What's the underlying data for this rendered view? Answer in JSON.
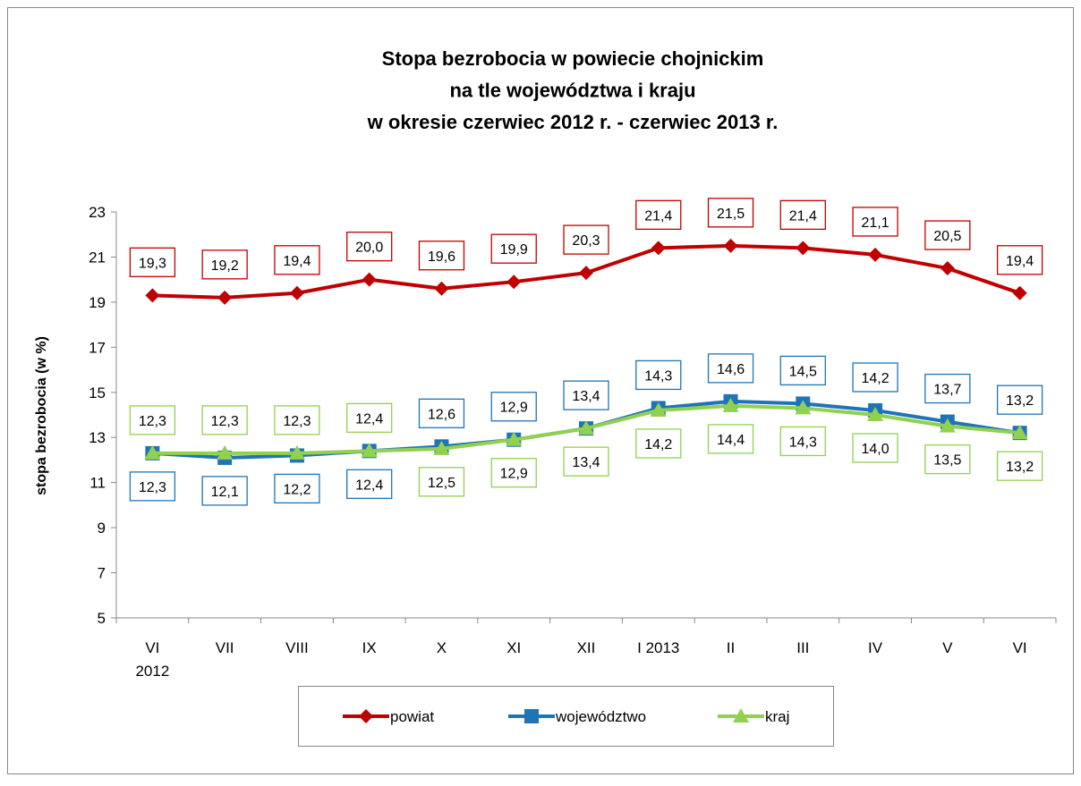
{
  "chart_data": {
    "type": "line",
    "title": [
      "Stopa bezrobocia w powiecie chojnickim",
      "na tle województwa i kraju",
      "w okresie czerwiec 2012 r. - czerwiec 2013 r."
    ],
    "ylabel": "stopa bezrobocia (w %)",
    "categories": [
      "VI\n2012",
      "VII",
      "VIII",
      "IX",
      "X",
      "XI",
      "XII",
      "I 2013",
      "II",
      "III",
      "IV",
      "V",
      "VI"
    ],
    "ylim": [
      5,
      23
    ],
    "yticks": [
      5,
      7,
      9,
      11,
      13,
      15,
      17,
      19,
      21,
      23
    ],
    "legend": "bottom",
    "series": [
      {
        "name": "powiat",
        "color": "#c00000",
        "marker": "diamond",
        "values": [
          19.3,
          19.2,
          19.4,
          20.0,
          19.6,
          19.9,
          20.3,
          21.4,
          21.5,
          21.4,
          21.1,
          20.5,
          19.4
        ],
        "value_labels": [
          "19,3",
          "19,2",
          "19,4",
          "20,0",
          "19,6",
          "19,9",
          "20,3",
          "21,4",
          "21,5",
          "21,4",
          "21,1",
          "20,5",
          "19,4"
        ]
      },
      {
        "name": "województwo",
        "color": "#1f74b8",
        "marker": "square",
        "values": [
          12.3,
          12.1,
          12.2,
          12.4,
          12.6,
          12.9,
          13.4,
          14.3,
          14.6,
          14.5,
          14.2,
          13.7,
          13.2
        ],
        "value_labels": [
          "12,3",
          "12,1",
          "12,2",
          "12,4",
          "12,6",
          "12,9",
          "13,4",
          "14,3",
          "14,6",
          "14,5",
          "14,2",
          "13,7",
          "13,2"
        ]
      },
      {
        "name": "kraj",
        "color": "#92d050",
        "marker": "triangle",
        "values": [
          12.3,
          12.3,
          12.3,
          12.4,
          12.5,
          12.9,
          13.4,
          14.2,
          14.4,
          14.3,
          14.0,
          13.5,
          13.2
        ],
        "value_labels": [
          "12,3",
          "12,3",
          "12,3",
          "12,4",
          "12,5",
          "12,9",
          "13,4",
          "14,2",
          "14,4",
          "14,3",
          "14,0",
          "13,5",
          "13,2"
        ]
      }
    ]
  }
}
